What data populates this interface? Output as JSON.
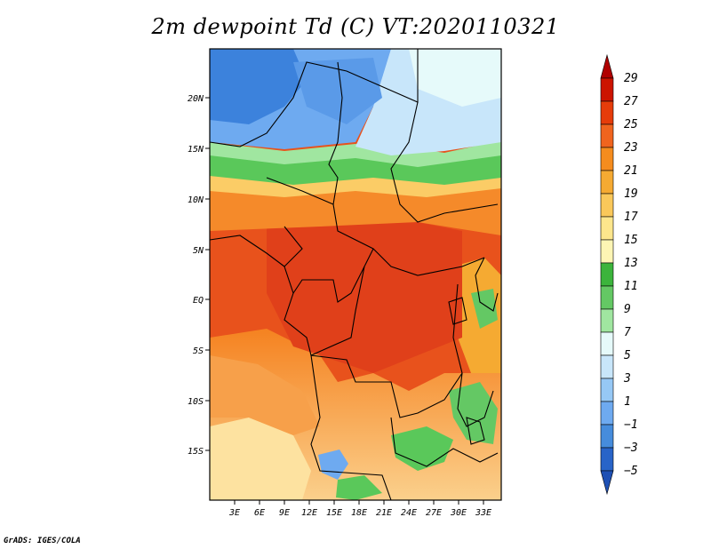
{
  "title": "2m dewpoint Td (C) VT:2020110321",
  "credit": "GrADS: IGES/COLA",
  "axes": {
    "lat_labels": [
      "20N",
      "15N",
      "10N",
      "5N",
      "EQ",
      "5S",
      "10S",
      "15S"
    ],
    "lon_labels": [
      "3E",
      "6E",
      "9E",
      "12E",
      "15E",
      "18E",
      "21E",
      "24E",
      "27E",
      "30E",
      "33E"
    ]
  },
  "colorbar": {
    "levels": [
      "29",
      "27",
      "25",
      "23",
      "21",
      "19",
      "17",
      "15",
      "13",
      "11",
      "9",
      "7",
      "5",
      "3",
      "1",
      "−1",
      "−3",
      "−5"
    ],
    "colors": [
      "#b00000",
      "#cc1400",
      "#e63c0a",
      "#f0641e",
      "#f58c1e",
      "#f5aa32",
      "#fac85a",
      "#fde68c",
      "#fdf5b4",
      "#3cb43c",
      "#64c864",
      "#a0e6a0",
      "#e6fafa",
      "#c8e6fa",
      "#96c8f5",
      "#6eaaf0",
      "#468cdc",
      "#2864c8",
      "#1e50b4"
    ]
  },
  "map_colors": {
    "blue": "#4a8ee6",
    "light_blue": "#a0cdf5",
    "green": "#5ac85a",
    "orange": "#f58220",
    "red_orange": "#e84a1a",
    "light_orange": "#fbb86a",
    "yellow": "#fde2a0"
  }
}
